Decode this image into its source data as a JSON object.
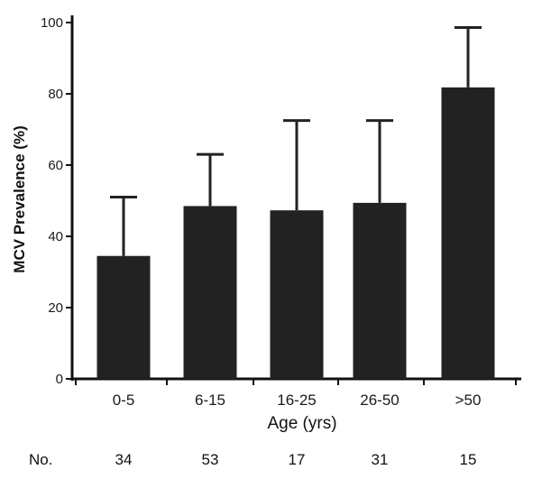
{
  "chart_data": {
    "type": "bar",
    "categories": [
      "0-5",
      "6-15",
      "16-25",
      "26-50",
      ">50"
    ],
    "values": [
      34.5,
      48.5,
      47.3,
      49.4,
      81.8
    ],
    "error_upper": [
      51,
      63,
      72.5,
      72.5,
      98.6
    ],
    "ylim": [
      0,
      100
    ],
    "yticks": [
      0,
      20,
      40,
      60,
      80,
      100
    ],
    "xlabel": "Age (yrs)",
    "ylabel": "MCV Prevalence (%)",
    "title": "",
    "bar_color": "#222222",
    "grid": false,
    "counts_label": "No.",
    "counts": [
      "34",
      "53",
      "17",
      "31",
      "15"
    ]
  }
}
